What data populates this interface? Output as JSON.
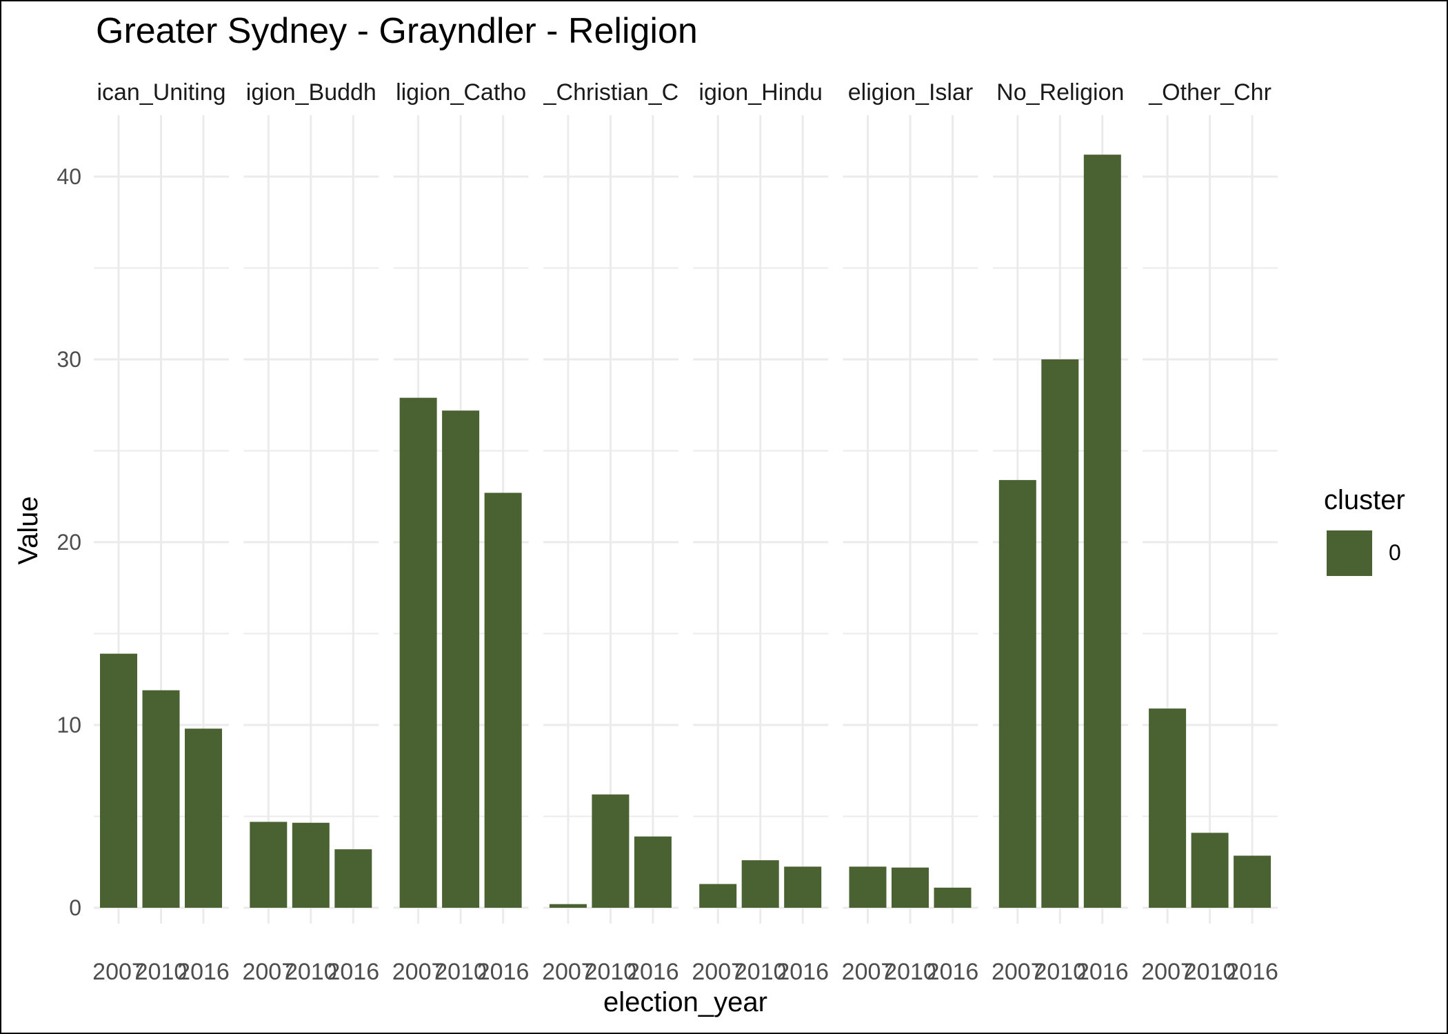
{
  "chart_data": {
    "type": "bar",
    "title": "Greater Sydney - Grayndler - Religion",
    "xlabel": "election_year",
    "ylabel": "Value",
    "ylim": [
      0,
      43.5
    ],
    "y_ticks": [
      0,
      10,
      20,
      30,
      40
    ],
    "grid": true,
    "legend": {
      "title": "cluster",
      "placement": "right",
      "entries": [
        {
          "label": "0",
          "color": "#4a6132"
        }
      ]
    },
    "bar_color": "#4a6132",
    "categories": [
      "2007",
      "2010",
      "2016"
    ],
    "facets": [
      {
        "label": "ican_Uniting",
        "values": [
          13.9,
          11.9,
          9.8
        ]
      },
      {
        "label": "igion_Buddh",
        "values": [
          4.7,
          4.65,
          3.2
        ]
      },
      {
        "label": "ligion_Catho",
        "values": [
          27.9,
          27.2,
          22.7
        ]
      },
      {
        "label": "_Christian_C",
        "values": [
          0.2,
          6.2,
          3.9
        ]
      },
      {
        "label": "igion_Hindu",
        "values": [
          1.3,
          2.6,
          2.25
        ]
      },
      {
        "label": "eligion_Islar",
        "values": [
          2.25,
          2.2,
          1.1
        ]
      },
      {
        "label": "No_Religion",
        "values": [
          23.4,
          30.0,
          41.2
        ]
      },
      {
        "label": "_Other_Chr",
        "values": [
          10.9,
          4.1,
          2.85
        ]
      }
    ]
  }
}
